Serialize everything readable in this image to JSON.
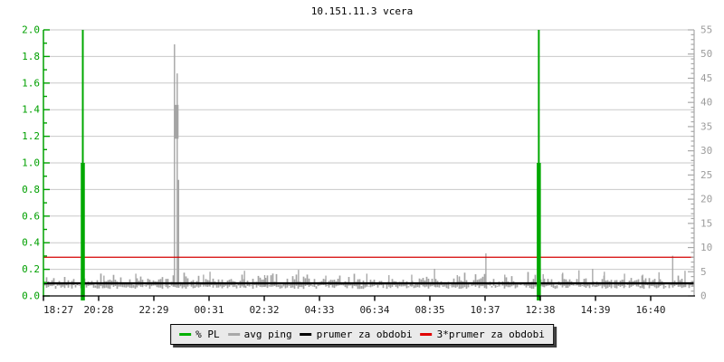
{
  "page": {
    "title": "10.151.11.3 vcera"
  },
  "chart_data": {
    "type": "line",
    "title": "10.151.11.3 vcera",
    "x_tick_labels": [
      "18:27",
      "20:28",
      "22:29",
      "00:31",
      "02:32",
      "04:33",
      "06:34",
      "08:35",
      "10:37",
      "12:38",
      "14:39",
      "16:40"
    ],
    "left_axis": {
      "label": "% PL scale",
      "min": 0,
      "max": 2,
      "major_step": 0.2,
      "minor_step": 0.1,
      "tick_labels": [
        "0.0",
        "0.2",
        "0.4",
        "0.6",
        "0.8",
        "1.0",
        "1.2",
        "1.4",
        "1.6",
        "1.8",
        "2.0"
      ],
      "color": "#00a000"
    },
    "right_axis": {
      "label": "avg ping (ms) scale",
      "min": 0,
      "max": 55,
      "major_step": 5,
      "minor_step": 1,
      "tick_labels": [
        "0",
        "5",
        "10",
        "15",
        "20",
        "25",
        "30",
        "35",
        "40",
        "45",
        "50",
        "55"
      ],
      "color": "#9c9c9c"
    },
    "grid": "horizontal-only",
    "grid_color": "#c9c9c9",
    "series": [
      {
        "name": "% PL",
        "axis": "left",
        "color": "#00a800",
        "baseline": 0,
        "spikes": [
          {
            "x_frac": 0.0605,
            "peak": 2.0,
            "solid_to": 1.0
          },
          {
            "x_frac": 0.7613,
            "peak": 2.0,
            "solid_to": 1.0
          }
        ]
      },
      {
        "name": "avg ping",
        "axis": "right",
        "color": "#a4a4a4",
        "baseline_ms": 2.5,
        "noise_amplitude_ms": 1.6,
        "spike_cluster": {
          "x_frac": 0.2035,
          "lines": [
            {
              "dx": -1.5,
              "peak": 52
            },
            {
              "dx": 1.5,
              "peak": 46
            },
            {
              "dx": 3.0,
              "peak": 24
            }
          ],
          "blob": {
            "dx": 0.5,
            "width": 5,
            "from": 32.5,
            "to": 39.5
          }
        },
        "notable_spikes": [
          {
            "x_frac": 0.093,
            "value": 4.2
          },
          {
            "x_frac": 0.142,
            "value": 4.6
          },
          {
            "x_frac": 0.246,
            "value": 4.4
          },
          {
            "x_frac": 0.256,
            "value": 5.0
          },
          {
            "x_frac": 0.309,
            "value": 5.2
          },
          {
            "x_frac": 0.34,
            "value": 4.3
          },
          {
            "x_frac": 0.392,
            "value": 5.4
          },
          {
            "x_frac": 0.434,
            "value": 4.2
          },
          {
            "x_frac": 0.497,
            "value": 4.6
          },
          {
            "x_frac": 0.531,
            "value": 4.3
          },
          {
            "x_frac": 0.566,
            "value": 4.4
          },
          {
            "x_frac": 0.601,
            "value": 5.6
          },
          {
            "x_frac": 0.636,
            "value": 4.3
          },
          {
            "x_frac": 0.68,
            "value": 8.8
          },
          {
            "x_frac": 0.709,
            "value": 4.4
          },
          {
            "x_frac": 0.768,
            "value": 4.5
          },
          {
            "x_frac": 0.798,
            "value": 4.8
          },
          {
            "x_frac": 0.823,
            "value": 5.3
          },
          {
            "x_frac": 0.844,
            "value": 5.6
          },
          {
            "x_frac": 0.862,
            "value": 5.0
          },
          {
            "x_frac": 0.893,
            "value": 4.6
          },
          {
            "x_frac": 0.921,
            "value": 4.4
          },
          {
            "x_frac": 0.946,
            "value": 4.9
          },
          {
            "x_frac": 0.967,
            "value": 8.3
          },
          {
            "x_frac": 0.986,
            "value": 5.2
          }
        ]
      },
      {
        "name": "prumer za obdobi",
        "axis": "right",
        "color": "#000000",
        "value": 2.6
      },
      {
        "name": "3*prumer za obdobi",
        "axis": "right",
        "color": "#d40000",
        "value": 8.0
      }
    ]
  },
  "legend": {
    "items": [
      {
        "label": "% PL",
        "color": "#00b000"
      },
      {
        "label": "avg ping",
        "color": "#a8a8a8"
      },
      {
        "label": "prumer za obdobi",
        "color": "#000000"
      },
      {
        "label": "3*prumer za obdobi",
        "color": "#e00000"
      }
    ]
  }
}
